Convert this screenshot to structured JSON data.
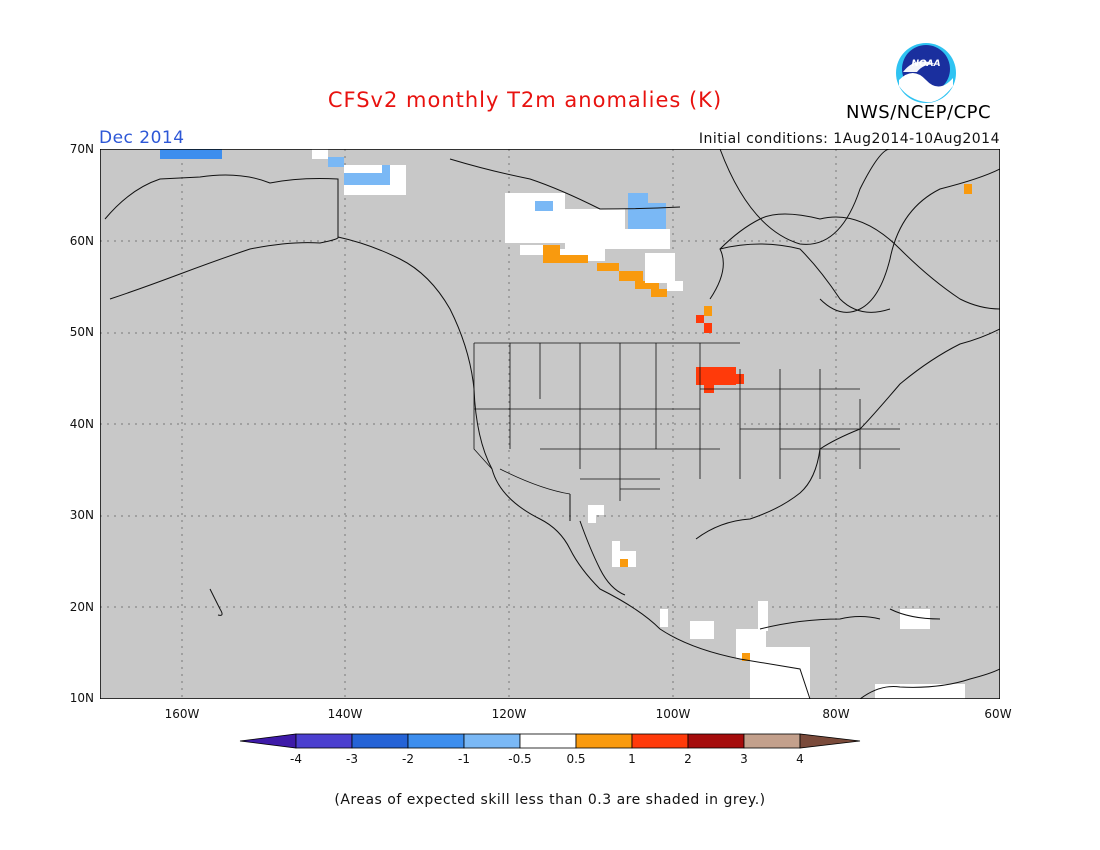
{
  "title": "CFSv2 monthly T2m anomalies (K)",
  "period": "Dec 2014",
  "initial_conditions": "Initial conditions: 1Aug2014-10Aug2014",
  "agency": "NWS/NCEP/CPC",
  "logo_text": "NOAA",
  "map": {
    "lon_range": [
      -170,
      -60
    ],
    "lat_range": [
      10,
      70
    ],
    "background_color": "#c8c8c8",
    "grid": true,
    "lat_labels": [
      "70N",
      "60N",
      "50N",
      "40N",
      "30N",
      "20N",
      "10N"
    ],
    "lat_values": [
      70,
      60,
      50,
      40,
      30,
      20,
      10
    ],
    "lon_labels": [
      "160W",
      "140W",
      "120W",
      "100W",
      "80W",
      "60W"
    ],
    "lon_values": [
      -160,
      -140,
      -120,
      -100,
      -80,
      -60
    ]
  },
  "colorbar": {
    "colors": [
      "#3e1aa8",
      "#4b3fcf",
      "#2563d6",
      "#3d8eee",
      "#7ab8f5",
      "#ffffff",
      "#f99a0e",
      "#ff3a0a",
      "#a50c0c",
      "#c3a08c",
      "#7a4a3a"
    ],
    "labels": [
      "-4",
      "-3",
      "-2",
      "-1",
      "-0.5",
      "0.5",
      "1",
      "2",
      "3",
      "4"
    ]
  },
  "footnote": "(Areas of expected skill less than 0.3 are shaded in grey.)"
}
